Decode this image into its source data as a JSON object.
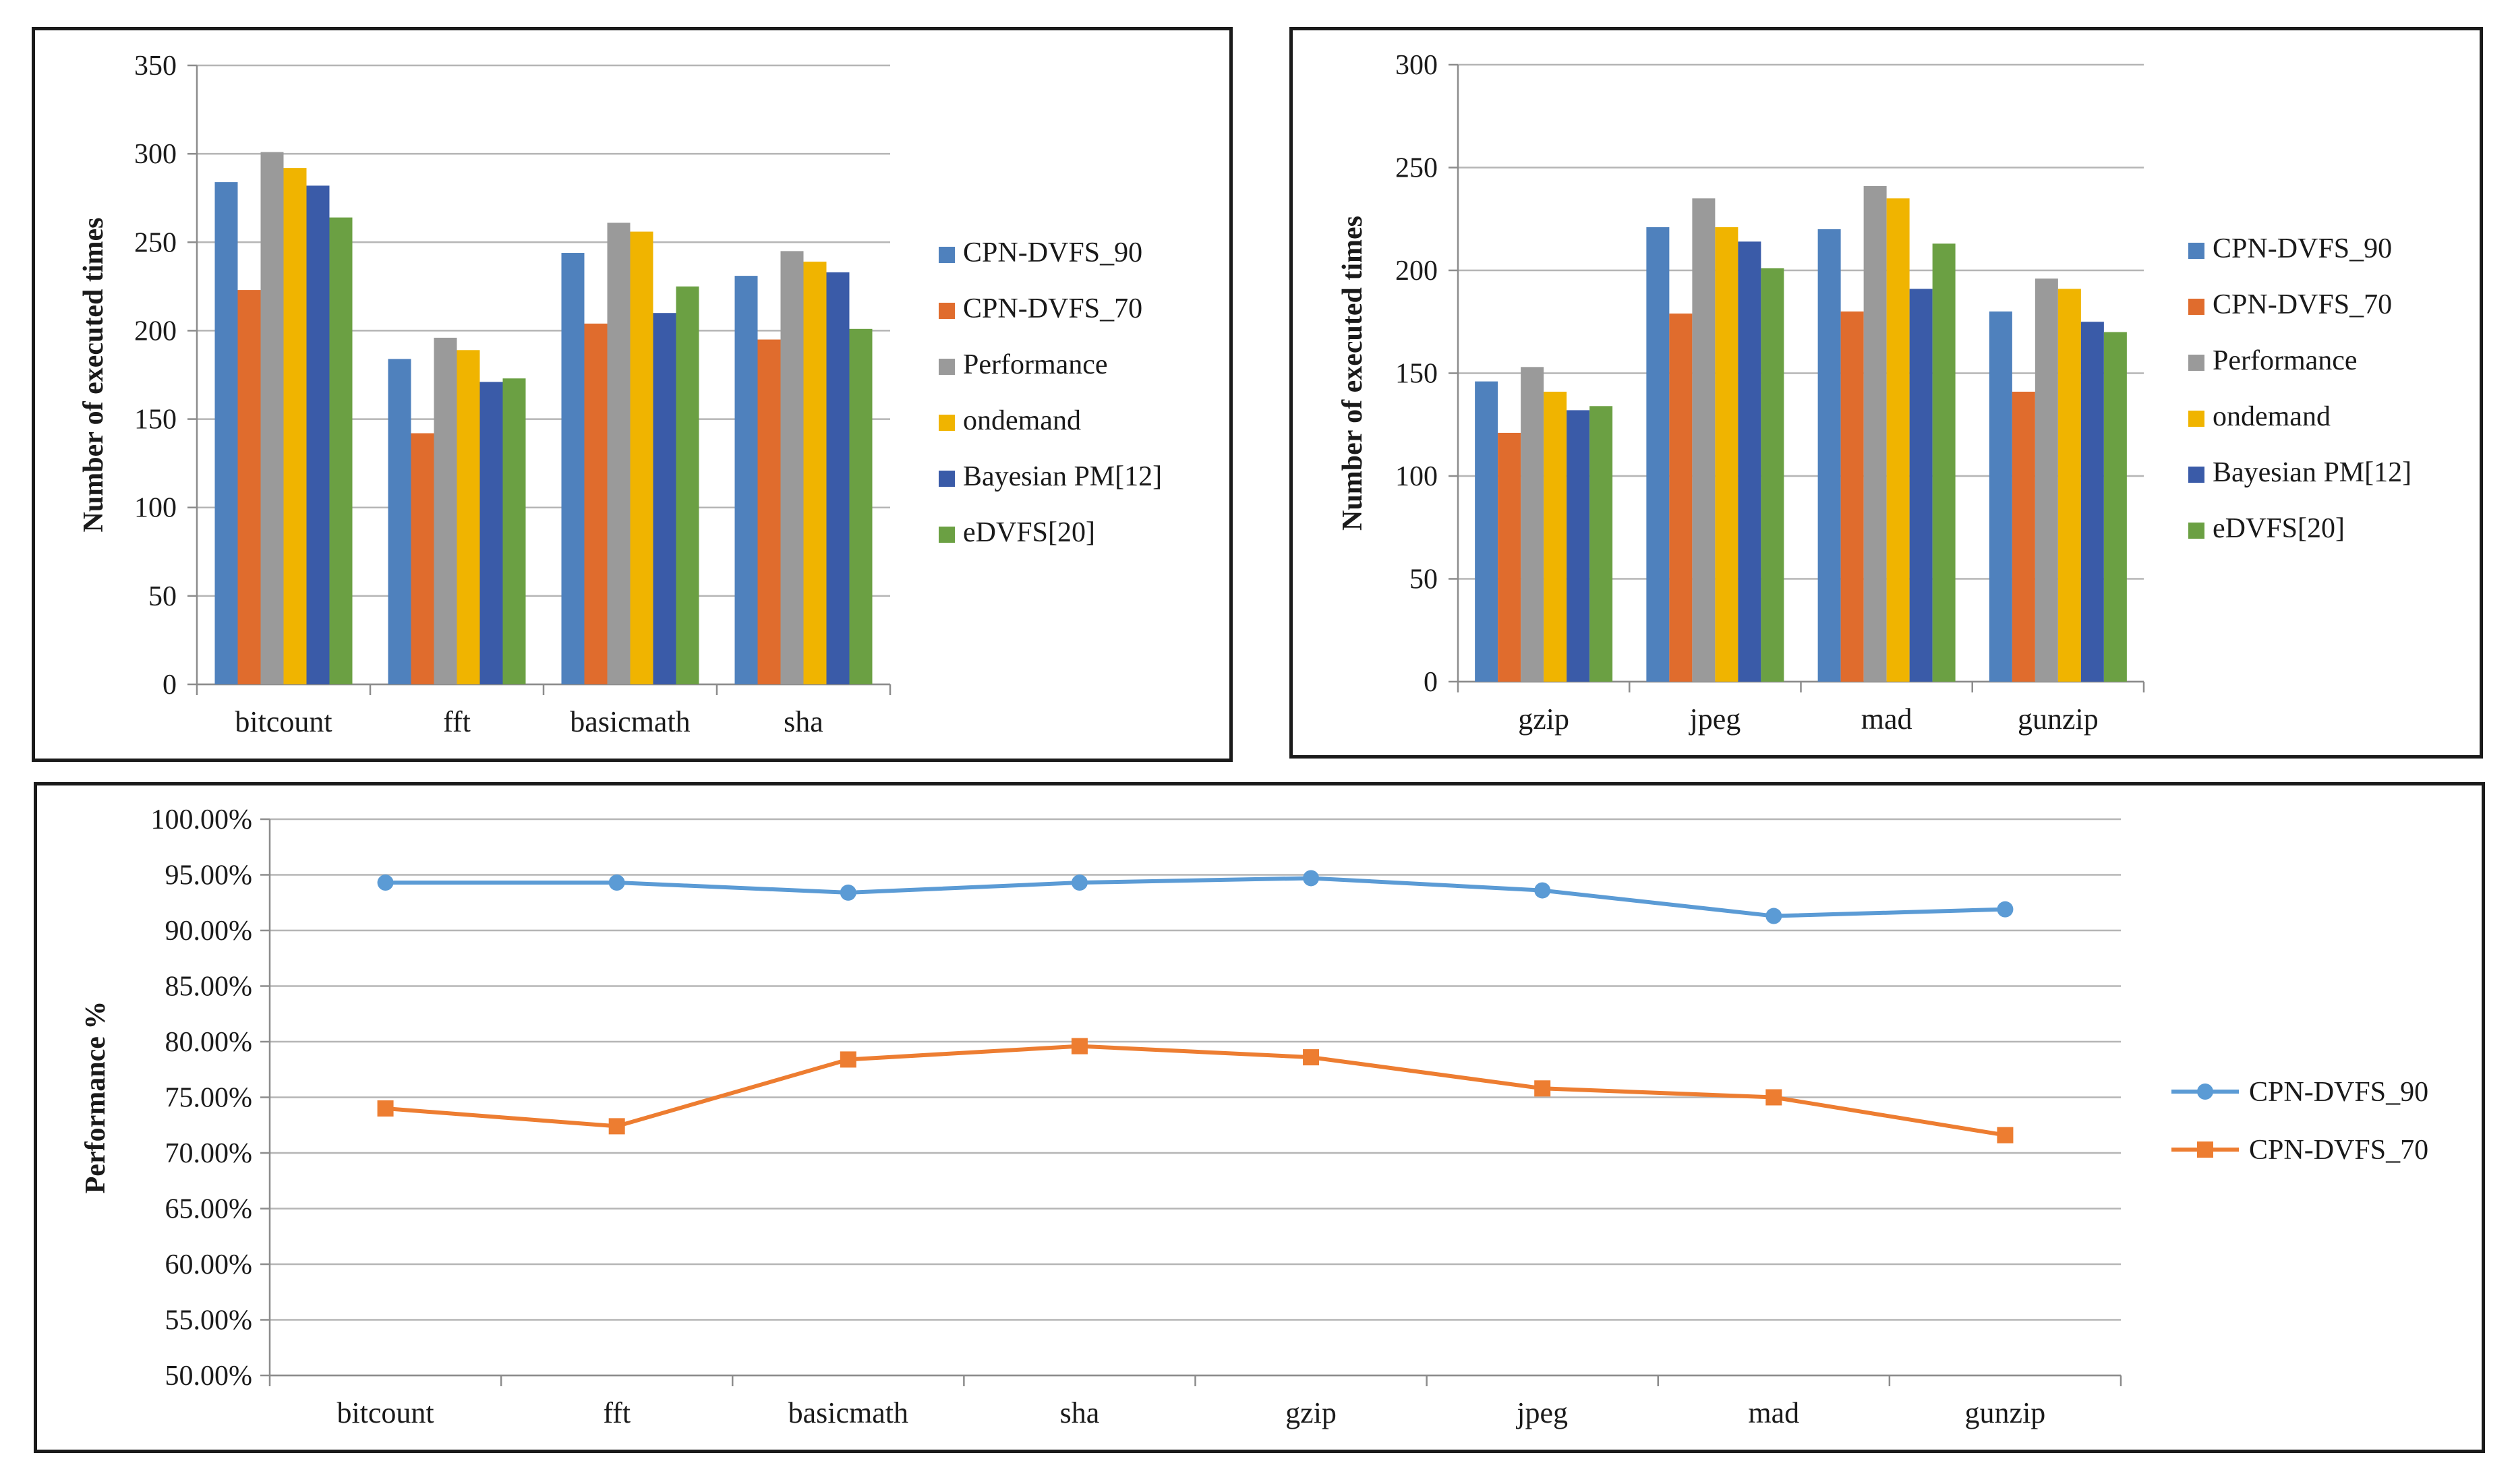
{
  "chart_data": [
    {
      "type": "bar",
      "ylabel": "Number of executed times",
      "xlabel": "",
      "ylim": [
        0,
        350
      ],
      "yticks": [
        0,
        50,
        100,
        150,
        200,
        250,
        300,
        350
      ],
      "grid": true,
      "legend_position": "right",
      "categories": [
        "bitcount",
        "fft",
        "basicmath",
        "sha"
      ],
      "series": [
        {
          "name": "CPN-DVFS_90",
          "color": "#4f81bd",
          "values": [
            284,
            184,
            244,
            231
          ]
        },
        {
          "name": "CPN-DVFS_70",
          "color": "#e06c2d",
          "values": [
            223,
            142,
            204,
            195
          ]
        },
        {
          "name": "Performance",
          "color": "#9a9a9a",
          "values": [
            301,
            196,
            261,
            245
          ]
        },
        {
          "name": "ondemand",
          "color": "#f0b400",
          "values": [
            292,
            189,
            256,
            239
          ]
        },
        {
          "name": "Bayesian PM[12]",
          "color": "#3a5ba8",
          "values": [
            282,
            171,
            210,
            233
          ]
        },
        {
          "name": "eDVFS[20]",
          "color": "#6ba043",
          "values": [
            264,
            173,
            225,
            201
          ]
        }
      ]
    },
    {
      "type": "bar",
      "ylabel": "Number of executed times",
      "xlabel": "",
      "ylim": [
        0,
        300
      ],
      "yticks": [
        0,
        50,
        100,
        150,
        200,
        250,
        300
      ],
      "grid": true,
      "legend_position": "right",
      "categories": [
        "gzip",
        "jpeg",
        "mad",
        "gunzip"
      ],
      "series": [
        {
          "name": "CPN-DVFS_90",
          "color": "#4f81bd",
          "values": [
            146,
            221,
            220,
            180
          ]
        },
        {
          "name": "CPN-DVFS_70",
          "color": "#e06c2d",
          "values": [
            121,
            179,
            180,
            141
          ]
        },
        {
          "name": "Performance",
          "color": "#9a9a9a",
          "values": [
            153,
            235,
            241,
            196
          ]
        },
        {
          "name": "ondemand",
          "color": "#f0b400",
          "values": [
            141,
            221,
            235,
            191
          ]
        },
        {
          "name": "Bayesian PM[12]",
          "color": "#3a5ba8",
          "values": [
            132,
            214,
            191,
            175
          ]
        },
        {
          "name": "eDVFS[20]",
          "color": "#6ba043",
          "values": [
            134,
            201,
            213,
            170
          ]
        }
      ]
    },
    {
      "type": "line",
      "ylabel": "Performance %",
      "xlabel": "",
      "ylim": [
        50,
        100
      ],
      "yticks": [
        "50.00%",
        "55.00%",
        "60.00%",
        "65.00%",
        "70.00%",
        "75.00%",
        "80.00%",
        "85.00%",
        "90.00%",
        "95.00%",
        "100.00%"
      ],
      "grid": true,
      "legend_position": "right",
      "categories": [
        "bitcount",
        "fft",
        "basicmath",
        "sha",
        "gzip",
        "jpeg",
        "mad",
        "gunzip"
      ],
      "series": [
        {
          "name": "CPN-DVFS_90",
          "color": "#5b9bd5",
          "marker": "circle",
          "values": [
            94.3,
            94.3,
            93.4,
            94.3,
            94.7,
            93.6,
            91.3,
            91.9
          ]
        },
        {
          "name": "CPN-DVFS_70",
          "color": "#ed7d31",
          "marker": "square",
          "values": [
            74.0,
            72.4,
            78.4,
            79.6,
            78.6,
            75.8,
            75.0,
            71.6
          ]
        }
      ]
    }
  ]
}
